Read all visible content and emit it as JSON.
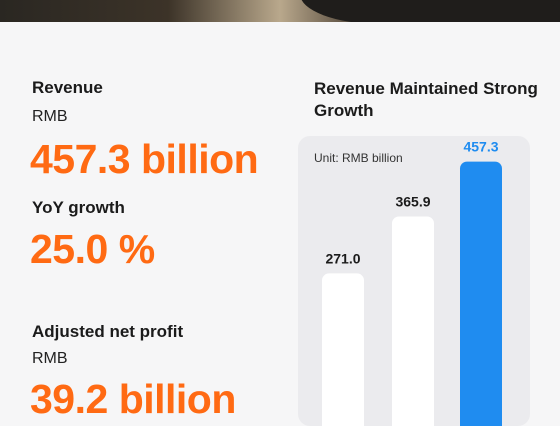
{
  "left": {
    "revenue_label": "Revenue",
    "revenue_currency": "RMB",
    "revenue_value": "457.3 billion",
    "yoy_label": "YoY growth",
    "yoy_value": "25.0 %",
    "profit_label": "Adjusted net profit",
    "profit_currency": "RMB",
    "profit_value": "39.2 billion"
  },
  "chart_data": {
    "type": "bar",
    "title": "Revenue Maintained Strong Growth",
    "unit": "Unit: RMB billion",
    "categories": [
      "",
      "",
      ""
    ],
    "values": [
      271.0,
      365.9,
      457.3
    ],
    "value_labels": [
      "271.0",
      "365.9",
      "457.3"
    ],
    "ylim": [
      0,
      500
    ],
    "bar_colors": [
      "#ffffff",
      "#ffffff",
      "#1f8cf0"
    ],
    "label_colors": [
      "#1b1b1b",
      "#1b1b1b",
      "#1f8cf0"
    ]
  },
  "colors": {
    "accent": "#ff6a13",
    "highlight_bar": "#1f8cf0"
  }
}
